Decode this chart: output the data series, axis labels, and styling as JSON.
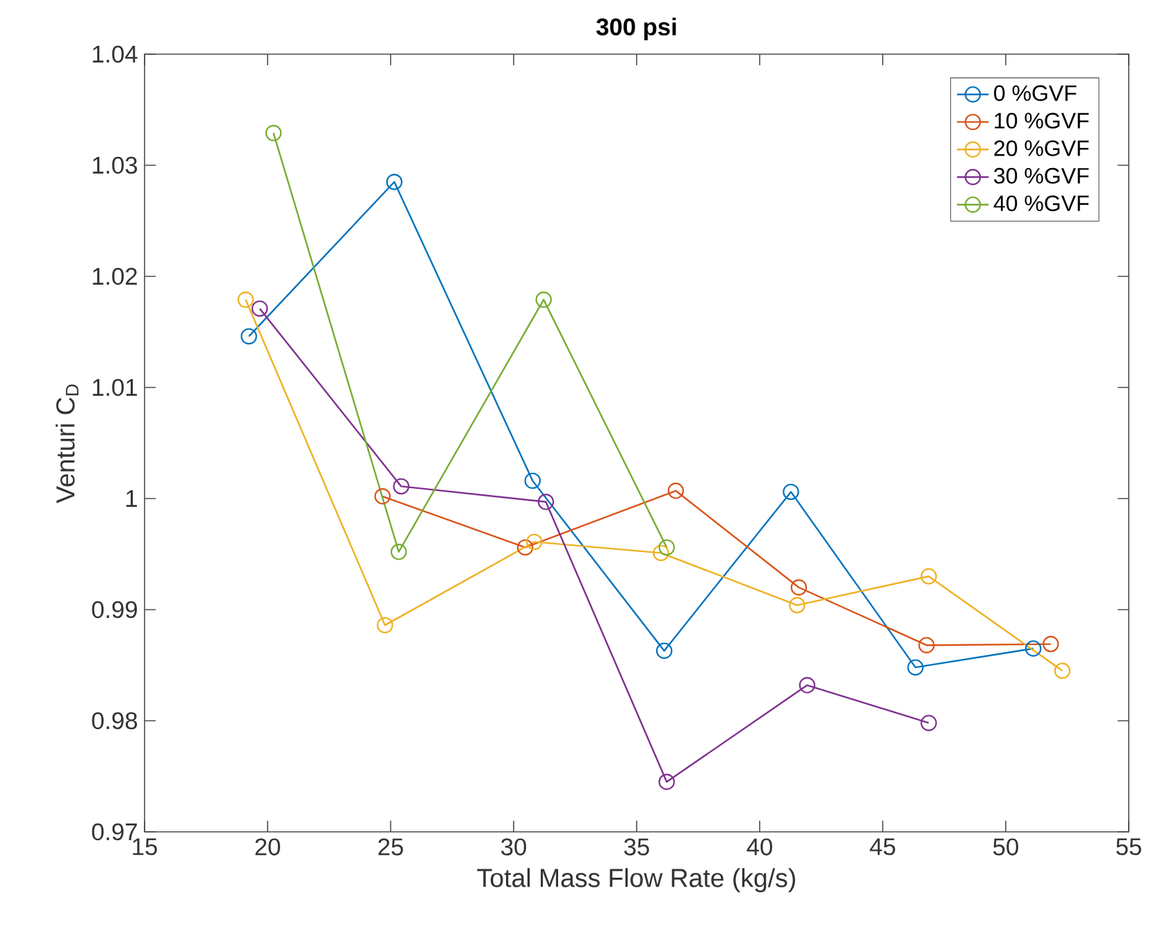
{
  "chart_data": {
    "type": "line",
    "title": "300 psi",
    "xlabel": "Total Mass Flow Rate (kg/s)",
    "ylabel": "Venturi C$_{D}$",
    "xlim": [
      15,
      55
    ],
    "xticks": [
      15,
      20,
      25,
      30,
      35,
      40,
      45,
      50,
      55
    ],
    "ylim": [
      0.97,
      1.04
    ],
    "yticks": [
      0.97,
      0.98,
      0.99,
      1,
      1.01,
      1.02,
      1.03,
      1.04
    ],
    "grid": false,
    "legend": "top right",
    "marker": "circle",
    "line_style": "solid",
    "series": [
      {
        "name": "0 %GVF",
        "color": "#0072bd",
        "x": [
          19.24,
          25.15,
          30.77,
          36.12,
          41.27,
          46.33,
          51.12
        ],
        "values": [
          1.0146,
          1.0285,
          1.0016,
          0.9863,
          1.0006,
          0.9848,
          0.9865
        ]
      },
      {
        "name": "10 %GVF",
        "color": "#d95319",
        "x": [
          24.67,
          30.47,
          36.59,
          41.59,
          46.78,
          51.83
        ],
        "values": [
          1.0002,
          0.9956,
          1.0007,
          0.992,
          0.9868,
          0.9869
        ]
      },
      {
        "name": "20 %GVF",
        "color": "#edb120",
        "x": [
          19.11,
          24.77,
          30.84,
          35.99,
          41.52,
          46.87,
          52.3
        ],
        "values": [
          1.0179,
          0.9886,
          0.9961,
          0.9951,
          0.9904,
          0.993,
          0.9845
        ]
      },
      {
        "name": "30 %GVF",
        "color": "#7e2f8e",
        "x": [
          19.68,
          25.43,
          31.31,
          36.22,
          41.93,
          46.87
        ],
        "values": [
          1.0171,
          1.0011,
          0.9997,
          0.9745,
          0.9832,
          0.9798
        ]
      },
      {
        "name": "40 %GVF",
        "color": "#77ac30",
        "x": [
          20.24,
          25.33,
          31.22,
          36.22
        ],
        "values": [
          1.0329,
          0.9952,
          1.0179,
          0.9956
        ]
      }
    ]
  }
}
